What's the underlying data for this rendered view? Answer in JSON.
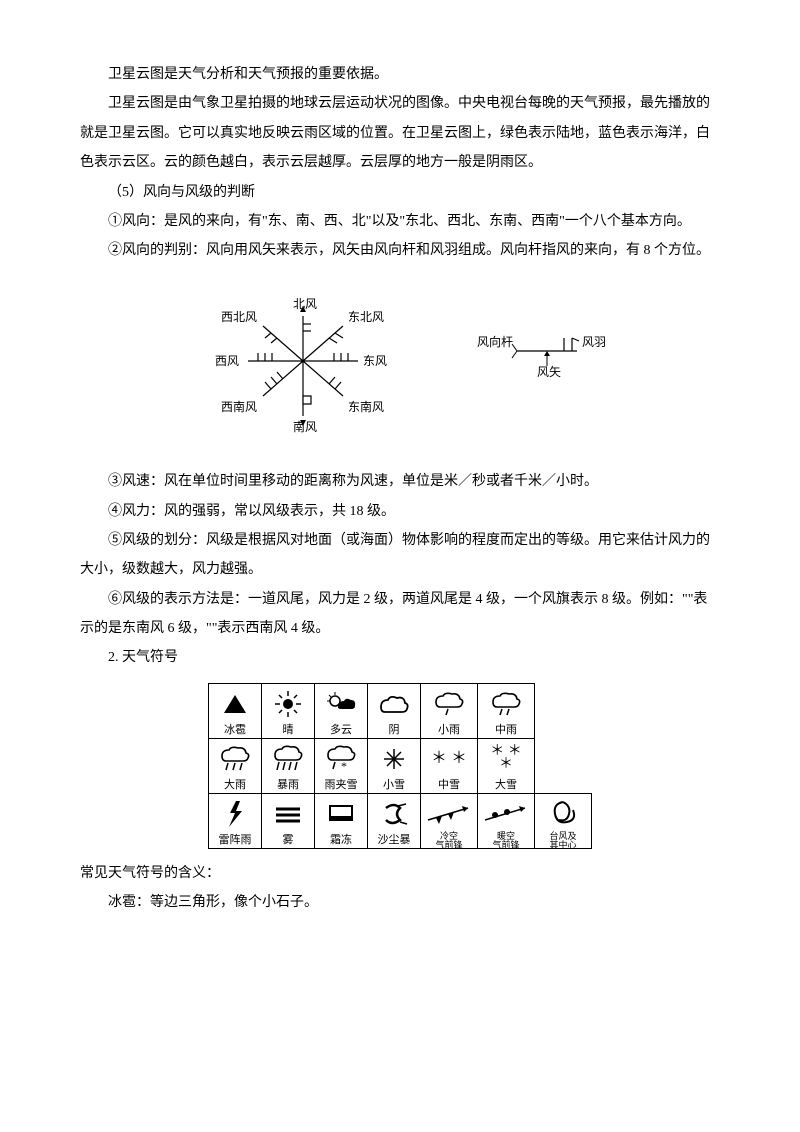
{
  "p1": "卫星云图是天气分析和天气预报的重要依据。",
  "p2": "卫星云图是由气象卫星拍摄的地球云层运动状况的图像。中央电视台每晚的天气预报，最先播放的就是卫星云图。它可以真实地反映云雨区域的位置。在卫星云图上，绿色表示陆地，蓝色表示海洋，白色表示云区。云的颜色越白，表示云层越厚。云层厚的地方一般是阴雨区。",
  "p3": "（5）风向与风级的判断",
  "p4": "①风向：是风的来向，有\"东、南、西、北\"以及\"东北、西北、东南、西南\"一个八个基本方向。",
  "p5": "②风向的判别：风向用风矢来表示，风矢由风向杆和风羽组成。风向杆指风的来向，有 8 个方位。",
  "compass": {
    "n": "北风",
    "ne": "东北风",
    "e": "东风",
    "se": "东南风",
    "s": "南风",
    "sw": "西南风",
    "w": "西风",
    "nw": "西北风"
  },
  "windparts": {
    "gan": "风向杆",
    "yu": "风羽",
    "shi": "风矢"
  },
  "p6": "③风速：风在单位时间里移动的距离称为风速，单位是米／秒或者千米／小时。",
  "p7": "④风力：风的强弱，常以风级表示，共 18 级。",
  "p8": "⑤风级的划分：风级是根据风对地面（或海面）物体影响的程度而定出的等级。用它来估计风力的大小，级数越大，风力越强。",
  "p9": "⑥风级的表示方法是：一道风尾，风力是 2 级，两道风尾是 4 级，一个风旗表示 8 级。例如：\"\"表示的是东南风 6 级，\"\"表示西南风 4 级。",
  "p10": "2. 天气符号",
  "weather": {
    "r1": [
      "冰雹",
      "晴",
      "多云",
      "阴",
      "小雨",
      "中雨"
    ],
    "r2": [
      "大雨",
      "暴雨",
      "雨夹雪",
      "小雪",
      "中雪",
      "大雪"
    ],
    "r3": [
      "雷阵雨",
      "雾",
      "霜冻",
      "沙尘暴",
      "冷空\n气前锋",
      "暖空\n气前锋",
      "台风及\n其中心"
    ]
  },
  "p11": "常见天气符号的含义：",
  "p12": "冰雹：等边三角形，像个小石子。"
}
